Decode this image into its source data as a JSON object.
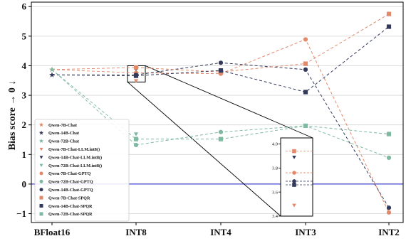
{
  "chart_data": {
    "type": "line",
    "title": "",
    "xlabel": "",
    "ylabel": "Bias score → 0 ↓",
    "categories": [
      "BFloat16",
      "INT8",
      "INT4",
      "INT3",
      "INT2"
    ],
    "ylim": [
      -1.3,
      6.15
    ],
    "yticks": [
      -1,
      0,
      1,
      2,
      3,
      4,
      5,
      6
    ],
    "ytick_labels": [
      "−1",
      "0",
      "1",
      "2",
      "3",
      "4",
      "5",
      "6"
    ],
    "grid": "horizontal",
    "reference_line": {
      "y": 0,
      "color": "#1515c8"
    },
    "legend_position": "lower-left",
    "colors": {
      "orange": "#e2896a",
      "navy": "#33395a",
      "teal": "#7fb9a2"
    },
    "series": [
      {
        "name": "Qwen-7B-Chat",
        "color": "#e2896a",
        "marker": "star",
        "points": [
          [
            0,
            3.87
          ]
        ]
      },
      {
        "name": "Qwen-14B-Chat",
        "color": "#33395a",
        "marker": "star",
        "points": [
          [
            0,
            3.69
          ]
        ]
      },
      {
        "name": "Qwen-72B-Chat",
        "color": "#7fb9a2",
        "marker": "star",
        "points": [
          [
            0,
            3.87
          ]
        ]
      },
      {
        "name": "Qwen-7B-Chat-LLM.int8()",
        "color": "#e2896a",
        "marker": "triangle-down",
        "points": [
          [
            1,
            3.49
          ]
        ]
      },
      {
        "name": "Qwen-14B-Chat-LLM.int8()",
        "color": "#33395a",
        "marker": "triangle-down",
        "points": [
          [
            1,
            3.89
          ]
        ]
      },
      {
        "name": "Qwen-72B-Chat-LLM.int8()",
        "color": "#7fb9a2",
        "marker": "triangle-down",
        "points": [
          [
            1,
            1.69
          ]
        ]
      },
      {
        "name": "Qwen-7B-Chat-GPTQ",
        "color": "#e2896a",
        "marker": "circle",
        "points": [
          [
            1,
            3.76
          ],
          [
            2,
            3.73
          ],
          [
            3,
            4.89
          ],
          [
            4,
            -0.96
          ]
        ]
      },
      {
        "name": "Qwen-72B-Chat-GPTQ",
        "color": "#7fb9a2",
        "marker": "circle",
        "points": [
          [
            1,
            1.32
          ],
          [
            2,
            1.76
          ],
          [
            3,
            1.97
          ],
          [
            4,
            0.89
          ]
        ]
      },
      {
        "name": "Qwen-14B-Chat-GPTQ",
        "color": "#33395a",
        "marker": "circle",
        "points": [
          [
            1,
            3.69
          ],
          [
            2,
            4.1
          ],
          [
            3,
            3.87
          ],
          [
            4,
            -0.8
          ]
        ]
      },
      {
        "name": "Qwen-7B-Chat-SPQR",
        "color": "#e2896a",
        "marker": "square",
        "points": [
          [
            1,
            3.94
          ],
          [
            2,
            3.79
          ],
          [
            3,
            4.07
          ],
          [
            4,
            5.75
          ]
        ]
      },
      {
        "name": "Qwen-14B-Chat-SPQR",
        "color": "#33395a",
        "marker": "square",
        "points": [
          [
            1,
            3.66
          ],
          [
            2,
            3.84
          ],
          [
            3,
            3.11
          ],
          [
            4,
            5.32
          ]
        ]
      },
      {
        "name": "Qwen-72B-Chat-SPQR",
        "color": "#7fb9a2",
        "marker": "square",
        "points": [
          [
            1,
            1.52
          ],
          [
            2,
            1.52
          ],
          [
            3,
            1.97
          ],
          [
            4,
            1.69
          ]
        ]
      }
    ],
    "inset": {
      "ylim": [
        3.4,
        4.05
      ],
      "yticks": [
        3.4,
        3.6,
        3.8,
        4.0
      ],
      "ytick_labels": [
        "3.4",
        "3.6",
        "3.8",
        "4.0"
      ],
      "zoom_of": "INT8"
    }
  }
}
